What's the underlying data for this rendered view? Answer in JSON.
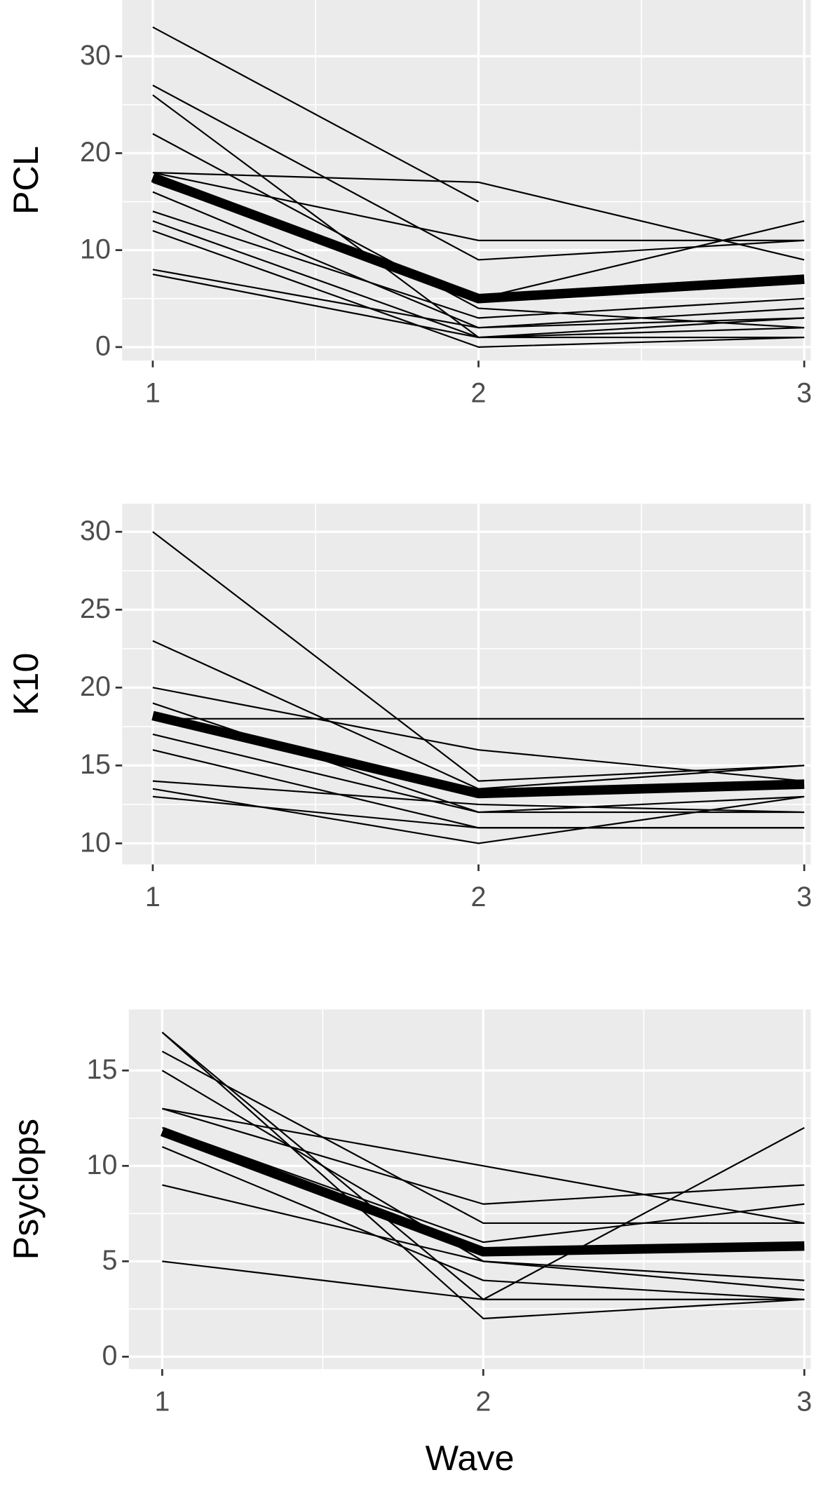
{
  "chart_data": [
    {
      "type": "line",
      "y_label": "PCL",
      "x": [
        1,
        2,
        3
      ],
      "xlim": [
        0.906,
        3.02
      ],
      "xticks": [
        1,
        2,
        3
      ],
      "ylim": [
        -1.4,
        35.8
      ],
      "yticks": [
        0,
        10,
        20,
        30
      ],
      "grid": true,
      "series": [
        {
          "color": "#000000",
          "values": [
            33,
            15,
            null
          ]
        },
        {
          "color": "#000000",
          "values": [
            27,
            9,
            11
          ]
        },
        {
          "color": "#000000",
          "values": [
            26,
            1,
            3
          ]
        },
        {
          "color": "#000000",
          "values": [
            22,
            4,
            2
          ]
        },
        {
          "color": "#000000",
          "values": [
            18,
            17,
            9
          ]
        },
        {
          "color": "#000000",
          "values": [
            18,
            11,
            11
          ]
        },
        {
          "color": "#000000",
          "values": [
            17,
            5,
            13
          ]
        },
        {
          "color": "#000000",
          "values": [
            16,
            2,
            4
          ]
        },
        {
          "color": "#000000",
          "values": [
            14,
            3,
            5
          ]
        },
        {
          "color": "#000000",
          "values": [
            13,
            1,
            2
          ]
        },
        {
          "color": "#000000",
          "values": [
            12,
            0,
            1
          ]
        },
        {
          "color": "#000000",
          "values": [
            8,
            2,
            3
          ]
        },
        {
          "color": "#000000",
          "values": [
            7.5,
            1,
            1
          ]
        },
        {
          "color": "#000000",
          "width": "thick",
          "values": [
            17.5,
            5,
            7
          ]
        }
      ]
    },
    {
      "type": "line",
      "y_label": "K10",
      "x": [
        1,
        2,
        3
      ],
      "xlim": [
        0.906,
        3.02
      ],
      "xticks": [
        1,
        2,
        3
      ],
      "ylim": [
        8.65,
        31.8
      ],
      "yticks": [
        10,
        15,
        20,
        25,
        30
      ],
      "grid": true,
      "series": [
        {
          "color": "#000000",
          "values": [
            30,
            14,
            15
          ]
        },
        {
          "color": "#000000",
          "values": [
            23,
            13.5,
            15
          ]
        },
        {
          "color": "#000000",
          "values": [
            20,
            16,
            14
          ]
        },
        {
          "color": "#000000",
          "values": [
            18,
            18,
            18
          ]
        },
        {
          "color": "#000000",
          "values": [
            19,
            12,
            13
          ]
        },
        {
          "color": "#000000",
          "values": [
            17,
            12,
            12
          ]
        },
        {
          "color": "#000000",
          "values": [
            16,
            11,
            11
          ]
        },
        {
          "color": "#000000",
          "values": [
            14,
            12.5,
            12
          ]
        },
        {
          "color": "#000000",
          "values": [
            13.5,
            10,
            13
          ]
        },
        {
          "color": "#000000",
          "values": [
            13,
            11,
            11
          ]
        },
        {
          "color": "#000000",
          "width": "thick",
          "values": [
            18.2,
            13.2,
            13.8
          ]
        }
      ]
    },
    {
      "type": "line",
      "y_label": "Psyclops",
      "x_label": "Wave",
      "x": [
        1,
        2,
        3
      ],
      "xlim": [
        0.896,
        3.02
      ],
      "xticks": [
        1,
        2,
        3
      ],
      "ylim": [
        -0.65,
        18.2
      ],
      "yticks": [
        0,
        5,
        10,
        15
      ],
      "grid": true,
      "series": [
        {
          "color": "#000000",
          "values": [
            17,
            2,
            3
          ]
        },
        {
          "color": "#000000",
          "values": [
            17,
            3,
            12
          ]
        },
        {
          "color": "#000000",
          "values": [
            16,
            7,
            7
          ]
        },
        {
          "color": "#000000",
          "values": [
            15,
            5,
            4
          ]
        },
        {
          "color": "#000000",
          "values": [
            13,
            10,
            7
          ]
        },
        {
          "color": "#000000",
          "values": [
            13,
            8,
            9
          ]
        },
        {
          "color": "#000000",
          "values": [
            12,
            6,
            8
          ]
        },
        {
          "color": "#000000",
          "values": [
            11,
            4,
            3
          ]
        },
        {
          "color": "#000000",
          "values": [
            9,
            5,
            3.5
          ]
        },
        {
          "color": "#000000",
          "values": [
            5,
            3,
            3
          ]
        },
        {
          "color": "#000000",
          "width": "thick",
          "values": [
            11.8,
            5.5,
            5.8
          ]
        }
      ]
    }
  ]
}
